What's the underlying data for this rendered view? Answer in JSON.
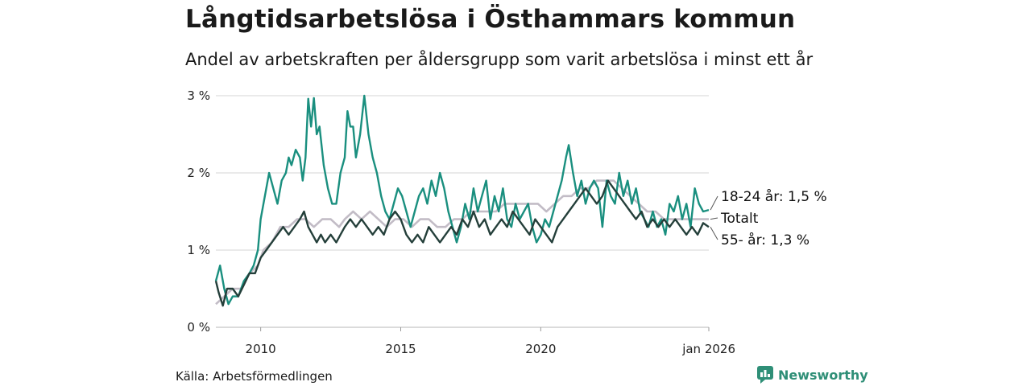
{
  "title": "Långtidsarbetslösa i Östhammars kommun",
  "subtitle": "Andel av arbetskraften per åldersgrupp som varit arbetslösa i minst ett år",
  "source": "Källa: Arbetsförmedlingen",
  "brand": {
    "name": "Newsworthy",
    "icon": "newsworthy-logo-icon"
  },
  "colors": {
    "youth": "#1a8f7f",
    "total": "#c2bcc6",
    "senior": "#243f3a",
    "grid": "#dddddd"
  },
  "chart_data": {
    "type": "line",
    "title": "Långtidsarbetslösa i Östhammars kommun",
    "xlabel": "",
    "ylabel": "",
    "xlim": [
      2008.4,
      2026.0
    ],
    "ylim": [
      0,
      3
    ],
    "y_ticks": [
      0,
      1,
      2,
      3
    ],
    "y_tick_labels": [
      "0 %",
      "1 %",
      "2 %",
      "3 %"
    ],
    "x_ticks": [
      2010,
      2015,
      2020,
      2026
    ],
    "x_tick_labels": [
      "2010",
      "2015",
      "2020",
      "jan 2026"
    ],
    "grid": true,
    "series": [
      {
        "name": "18-24 år",
        "end_label": "18-24 år: 1,5 %",
        "color_key": "youth",
        "points": [
          [
            2008.4,
            0.6
          ],
          [
            2008.55,
            0.8
          ],
          [
            2008.7,
            0.5
          ],
          [
            2008.85,
            0.3
          ],
          [
            2009.0,
            0.4
          ],
          [
            2009.2,
            0.4
          ],
          [
            2009.4,
            0.6
          ],
          [
            2009.6,
            0.7
          ],
          [
            2009.75,
            0.8
          ],
          [
            2009.9,
            1.0
          ],
          [
            2010.0,
            1.4
          ],
          [
            2010.1,
            1.6
          ],
          [
            2010.2,
            1.8
          ],
          [
            2010.3,
            2.0
          ],
          [
            2010.45,
            1.8
          ],
          [
            2010.6,
            1.6
          ],
          [
            2010.75,
            1.9
          ],
          [
            2010.9,
            2.0
          ],
          [
            2011.0,
            2.2
          ],
          [
            2011.1,
            2.1
          ],
          [
            2011.25,
            2.3
          ],
          [
            2011.4,
            2.2
          ],
          [
            2011.5,
            1.9
          ],
          [
            2011.6,
            2.2
          ],
          [
            2011.7,
            2.96
          ],
          [
            2011.8,
            2.6
          ],
          [
            2011.9,
            2.97
          ],
          [
            2012.0,
            2.5
          ],
          [
            2012.1,
            2.6
          ],
          [
            2012.25,
            2.1
          ],
          [
            2012.4,
            1.8
          ],
          [
            2012.55,
            1.6
          ],
          [
            2012.7,
            1.6
          ],
          [
            2012.85,
            2.0
          ],
          [
            2013.0,
            2.2
          ],
          [
            2013.1,
            2.8
          ],
          [
            2013.2,
            2.6
          ],
          [
            2013.3,
            2.6
          ],
          [
            2013.4,
            2.2
          ],
          [
            2013.55,
            2.5
          ],
          [
            2013.7,
            3.0
          ],
          [
            2013.85,
            2.5
          ],
          [
            2014.0,
            2.2
          ],
          [
            2014.15,
            2.0
          ],
          [
            2014.3,
            1.7
          ],
          [
            2014.45,
            1.5
          ],
          [
            2014.6,
            1.4
          ],
          [
            2014.75,
            1.6
          ],
          [
            2014.9,
            1.8
          ],
          [
            2015.05,
            1.7
          ],
          [
            2015.2,
            1.5
          ],
          [
            2015.35,
            1.3
          ],
          [
            2015.5,
            1.5
          ],
          [
            2015.65,
            1.7
          ],
          [
            2015.8,
            1.8
          ],
          [
            2015.95,
            1.6
          ],
          [
            2016.1,
            1.9
          ],
          [
            2016.25,
            1.7
          ],
          [
            2016.4,
            2.0
          ],
          [
            2016.55,
            1.8
          ],
          [
            2016.7,
            1.5
          ],
          [
            2016.85,
            1.3
          ],
          [
            2017.0,
            1.1
          ],
          [
            2017.15,
            1.3
          ],
          [
            2017.3,
            1.6
          ],
          [
            2017.45,
            1.4
          ],
          [
            2017.6,
            1.8
          ],
          [
            2017.75,
            1.5
          ],
          [
            2017.9,
            1.7
          ],
          [
            2018.05,
            1.9
          ],
          [
            2018.2,
            1.4
          ],
          [
            2018.35,
            1.7
          ],
          [
            2018.5,
            1.5
          ],
          [
            2018.65,
            1.8
          ],
          [
            2018.8,
            1.4
          ],
          [
            2018.95,
            1.3
          ],
          [
            2019.1,
            1.6
          ],
          [
            2019.25,
            1.4
          ],
          [
            2019.4,
            1.5
          ],
          [
            2019.55,
            1.6
          ],
          [
            2019.7,
            1.3
          ],
          [
            2019.85,
            1.1
          ],
          [
            2020.0,
            1.2
          ],
          [
            2020.15,
            1.4
          ],
          [
            2020.3,
            1.3
          ],
          [
            2020.45,
            1.5
          ],
          [
            2020.6,
            1.7
          ],
          [
            2020.75,
            1.9
          ],
          [
            2020.9,
            2.2
          ],
          [
            2021.0,
            2.36
          ],
          [
            2021.15,
            2.0
          ],
          [
            2021.3,
            1.7
          ],
          [
            2021.45,
            1.9
          ],
          [
            2021.6,
            1.6
          ],
          [
            2021.75,
            1.8
          ],
          [
            2021.9,
            1.9
          ],
          [
            2022.05,
            1.8
          ],
          [
            2022.2,
            1.3
          ],
          [
            2022.35,
            1.9
          ],
          [
            2022.5,
            1.7
          ],
          [
            2022.65,
            1.6
          ],
          [
            2022.8,
            2.0
          ],
          [
            2022.95,
            1.7
          ],
          [
            2023.1,
            1.9
          ],
          [
            2023.25,
            1.6
          ],
          [
            2023.4,
            1.8
          ],
          [
            2023.55,
            1.5
          ],
          [
            2023.7,
            1.4
          ],
          [
            2023.85,
            1.3
          ],
          [
            2024.0,
            1.5
          ],
          [
            2024.15,
            1.3
          ],
          [
            2024.3,
            1.4
          ],
          [
            2024.45,
            1.2
          ],
          [
            2024.6,
            1.6
          ],
          [
            2024.75,
            1.5
          ],
          [
            2024.9,
            1.7
          ],
          [
            2025.05,
            1.4
          ],
          [
            2025.2,
            1.6
          ],
          [
            2025.35,
            1.3
          ],
          [
            2025.5,
            1.8
          ],
          [
            2025.65,
            1.6
          ],
          [
            2025.8,
            1.5
          ],
          [
            2026.0,
            1.52
          ]
        ]
      },
      {
        "name": "Totalt",
        "end_label": "Totalt",
        "color_key": "total",
        "points": [
          [
            2008.4,
            0.3
          ],
          [
            2008.7,
            0.4
          ],
          [
            2009.0,
            0.5
          ],
          [
            2009.3,
            0.5
          ],
          [
            2009.6,
            0.7
          ],
          [
            2009.9,
            0.8
          ],
          [
            2010.1,
            1.0
          ],
          [
            2010.4,
            1.1
          ],
          [
            2010.7,
            1.3
          ],
          [
            2011.0,
            1.3
          ],
          [
            2011.3,
            1.4
          ],
          [
            2011.6,
            1.4
          ],
          [
            2011.9,
            1.3
          ],
          [
            2012.2,
            1.4
          ],
          [
            2012.5,
            1.4
          ],
          [
            2012.8,
            1.3
          ],
          [
            2013.0,
            1.4
          ],
          [
            2013.3,
            1.5
          ],
          [
            2013.6,
            1.4
          ],
          [
            2013.9,
            1.5
          ],
          [
            2014.2,
            1.4
          ],
          [
            2014.5,
            1.3
          ],
          [
            2014.8,
            1.4
          ],
          [
            2015.1,
            1.4
          ],
          [
            2015.4,
            1.3
          ],
          [
            2015.7,
            1.4
          ],
          [
            2016.0,
            1.4
          ],
          [
            2016.3,
            1.3
          ],
          [
            2016.6,
            1.3
          ],
          [
            2016.9,
            1.4
          ],
          [
            2017.2,
            1.4
          ],
          [
            2017.5,
            1.5
          ],
          [
            2017.8,
            1.5
          ],
          [
            2018.1,
            1.5
          ],
          [
            2018.4,
            1.5
          ],
          [
            2018.7,
            1.6
          ],
          [
            2019.0,
            1.6
          ],
          [
            2019.3,
            1.6
          ],
          [
            2019.6,
            1.6
          ],
          [
            2019.9,
            1.6
          ],
          [
            2020.2,
            1.5
          ],
          [
            2020.5,
            1.6
          ],
          [
            2020.8,
            1.7
          ],
          [
            2021.1,
            1.7
          ],
          [
            2021.4,
            1.8
          ],
          [
            2021.7,
            1.8
          ],
          [
            2022.0,
            1.9
          ],
          [
            2022.3,
            1.9
          ],
          [
            2022.6,
            1.9
          ],
          [
            2022.9,
            1.8
          ],
          [
            2023.2,
            1.7
          ],
          [
            2023.5,
            1.6
          ],
          [
            2023.8,
            1.5
          ],
          [
            2024.1,
            1.5
          ],
          [
            2024.4,
            1.4
          ],
          [
            2024.7,
            1.4
          ],
          [
            2025.0,
            1.4
          ],
          [
            2025.3,
            1.4
          ],
          [
            2025.6,
            1.4
          ],
          [
            2026.0,
            1.4
          ]
        ]
      },
      {
        "name": "55- år",
        "end_label": "55- år: 1,3 %",
        "color_key": "senior",
        "points": [
          [
            2008.4,
            0.6
          ],
          [
            2008.5,
            0.45
          ],
          [
            2008.65,
            0.28
          ],
          [
            2008.8,
            0.5
          ],
          [
            2009.0,
            0.5
          ],
          [
            2009.2,
            0.4
          ],
          [
            2009.4,
            0.55
          ],
          [
            2009.6,
            0.7
          ],
          [
            2009.8,
            0.7
          ],
          [
            2010.0,
            0.9
          ],
          [
            2010.2,
            1.0
          ],
          [
            2010.4,
            1.1
          ],
          [
            2010.6,
            1.2
          ],
          [
            2010.8,
            1.3
          ],
          [
            2011.0,
            1.2
          ],
          [
            2011.2,
            1.3
          ],
          [
            2011.4,
            1.4
          ],
          [
            2011.55,
            1.5
          ],
          [
            2011.7,
            1.3
          ],
          [
            2011.85,
            1.2
          ],
          [
            2012.0,
            1.1
          ],
          [
            2012.15,
            1.2
          ],
          [
            2012.3,
            1.1
          ],
          [
            2012.5,
            1.2
          ],
          [
            2012.7,
            1.1
          ],
          [
            2012.85,
            1.2
          ],
          [
            2013.0,
            1.3
          ],
          [
            2013.2,
            1.4
          ],
          [
            2013.4,
            1.3
          ],
          [
            2013.6,
            1.4
          ],
          [
            2013.8,
            1.3
          ],
          [
            2014.0,
            1.2
          ],
          [
            2014.2,
            1.3
          ],
          [
            2014.4,
            1.2
          ],
          [
            2014.6,
            1.4
          ],
          [
            2014.8,
            1.5
          ],
          [
            2015.0,
            1.4
          ],
          [
            2015.2,
            1.2
          ],
          [
            2015.4,
            1.1
          ],
          [
            2015.6,
            1.2
          ],
          [
            2015.8,
            1.1
          ],
          [
            2016.0,
            1.3
          ],
          [
            2016.2,
            1.2
          ],
          [
            2016.4,
            1.1
          ],
          [
            2016.6,
            1.2
          ],
          [
            2016.8,
            1.3
          ],
          [
            2017.0,
            1.2
          ],
          [
            2017.2,
            1.4
          ],
          [
            2017.4,
            1.3
          ],
          [
            2017.6,
            1.5
          ],
          [
            2017.8,
            1.3
          ],
          [
            2018.0,
            1.4
          ],
          [
            2018.2,
            1.2
          ],
          [
            2018.4,
            1.3
          ],
          [
            2018.6,
            1.4
          ],
          [
            2018.8,
            1.3
          ],
          [
            2019.0,
            1.5
          ],
          [
            2019.2,
            1.4
          ],
          [
            2019.4,
            1.3
          ],
          [
            2019.6,
            1.2
          ],
          [
            2019.8,
            1.4
          ],
          [
            2020.0,
            1.3
          ],
          [
            2020.2,
            1.2
          ],
          [
            2020.4,
            1.1
          ],
          [
            2020.6,
            1.3
          ],
          [
            2020.8,
            1.4
          ],
          [
            2021.0,
            1.5
          ],
          [
            2021.2,
            1.6
          ],
          [
            2021.4,
            1.7
          ],
          [
            2021.6,
            1.8
          ],
          [
            2021.8,
            1.7
          ],
          [
            2022.0,
            1.6
          ],
          [
            2022.2,
            1.7
          ],
          [
            2022.4,
            1.9
          ],
          [
            2022.6,
            1.8
          ],
          [
            2022.8,
            1.7
          ],
          [
            2023.0,
            1.6
          ],
          [
            2023.2,
            1.5
          ],
          [
            2023.4,
            1.4
          ],
          [
            2023.6,
            1.5
          ],
          [
            2023.8,
            1.3
          ],
          [
            2024.0,
            1.4
          ],
          [
            2024.2,
            1.3
          ],
          [
            2024.4,
            1.4
          ],
          [
            2024.6,
            1.3
          ],
          [
            2024.8,
            1.4
          ],
          [
            2025.0,
            1.3
          ],
          [
            2025.2,
            1.2
          ],
          [
            2025.4,
            1.3
          ],
          [
            2025.6,
            1.2
          ],
          [
            2025.8,
            1.35
          ],
          [
            2026.0,
            1.3
          ]
        ]
      }
    ]
  }
}
